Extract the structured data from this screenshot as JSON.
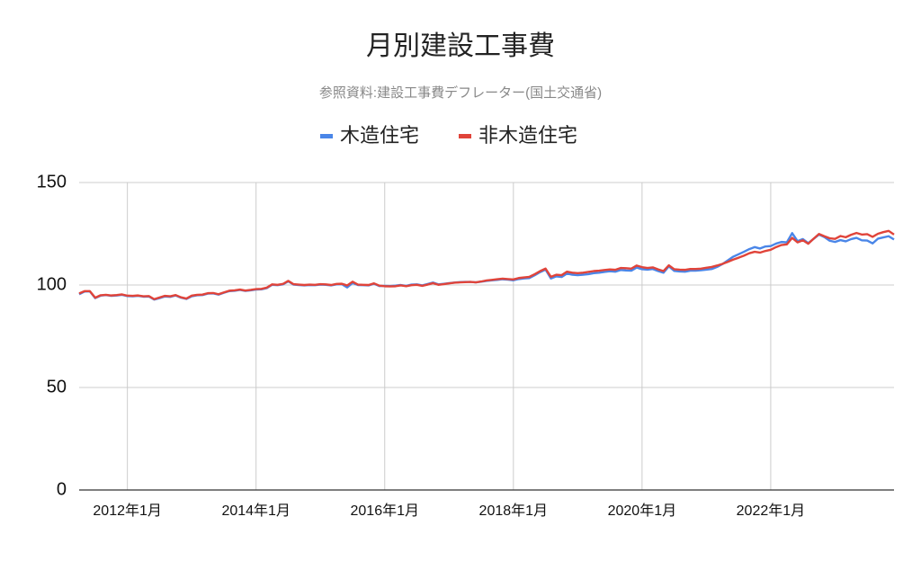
{
  "chart_data": {
    "type": "line",
    "title": "月別建設工事費",
    "subtitle": "参照資料:建設工事費デフレーター(国土交通省)",
    "categories": [
      null,
      null,
      null,
      null,
      null,
      null,
      null,
      null,
      null,
      "2012年1月",
      null,
      null,
      null,
      null,
      null,
      null,
      null,
      null,
      null,
      null,
      null,
      null,
      null,
      null,
      null,
      null,
      null,
      null,
      null,
      null,
      null,
      null,
      null,
      "2014年1月",
      null,
      null,
      null,
      null,
      null,
      null,
      null,
      null,
      null,
      null,
      null,
      null,
      null,
      null,
      null,
      null,
      null,
      null,
      null,
      null,
      null,
      null,
      null,
      "2016年1月",
      null,
      null,
      null,
      null,
      null,
      null,
      null,
      null,
      null,
      null,
      null,
      null,
      null,
      null,
      null,
      null,
      null,
      null,
      null,
      null,
      null,
      null,
      null,
      "2018年1月",
      null,
      null,
      null,
      null,
      null,
      null,
      null,
      null,
      null,
      null,
      null,
      null,
      null,
      null,
      null,
      null,
      null,
      null,
      null,
      null,
      null,
      null,
      null,
      "2020年1月",
      null,
      null,
      null,
      null,
      null,
      null,
      null,
      null,
      null,
      null,
      null,
      null,
      null,
      null,
      null,
      null,
      null,
      null,
      null,
      null,
      null,
      null,
      null,
      "2022年1月",
      null,
      null,
      null,
      null,
      null,
      null,
      null,
      null,
      null,
      null,
      null,
      null,
      null,
      null,
      null,
      null,
      null,
      null,
      null,
      null,
      null,
      null,
      null
    ],
    "series": [
      {
        "name": "木造住宅",
        "color": "#4a86e8",
        "values": [
          95.5,
          96.8,
          96.9,
          93.6,
          94.8,
          95.1,
          94.7,
          94.9,
          95.2,
          94.6,
          94.5,
          94.7,
          94.3,
          94.4,
          92.9,
          93.6,
          94.4,
          94.2,
          94.9,
          93.8,
          93.2,
          94.5,
          95.0,
          95.1,
          95.8,
          95.9,
          95.3,
          96.2,
          97.0,
          97.2,
          97.6,
          97.1,
          97.4,
          97.8,
          97.9,
          98.5,
          100.1,
          99.9,
          100.3,
          101.8,
          100.2,
          100.0,
          99.8,
          100.0,
          99.9,
          100.2,
          100.1,
          99.8,
          100.3,
          100.4,
          98.8,
          101.0,
          100.0,
          99.9,
          99.8,
          100.6,
          99.5,
          99.6,
          99.5,
          99.7,
          100.0,
          99.6,
          100.2,
          100.3,
          99.8,
          100.5,
          101.2,
          100.3,
          100.6,
          100.9,
          101.2,
          101.4,
          101.5,
          101.5,
          101.3,
          101.6,
          102.0,
          102.3,
          102.5,
          102.8,
          102.6,
          102.3,
          102.9,
          103.2,
          103.4,
          104.8,
          106.3,
          107.5,
          103.2,
          104.2,
          103.9,
          105.6,
          105.0,
          104.8,
          105.0,
          105.3,
          105.8,
          106.0,
          106.4,
          106.7,
          106.5,
          107.3,
          107.1,
          107.0,
          108.5,
          107.7,
          107.5,
          107.8,
          106.8,
          106.0,
          109.1,
          106.9,
          106.6,
          106.5,
          107.0,
          107.0,
          107.2,
          107.5,
          107.8,
          108.8,
          110.2,
          112.0,
          113.8,
          115.0,
          116.2,
          117.5,
          118.5,
          117.8,
          118.8,
          119.0,
          120.2,
          121.0,
          120.8,
          125.3,
          121.4,
          122.4,
          120.4,
          122.5,
          124.6,
          123.4,
          121.6,
          121.0,
          121.9,
          121.3,
          122.4,
          123.0,
          121.8,
          121.7,
          120.3,
          122.6,
          123.2,
          123.8,
          122.2
        ]
      },
      {
        "name": "非木造住宅",
        "color": "#e0443a",
        "values": [
          95.9,
          97.0,
          97.0,
          93.8,
          95.0,
          95.2,
          94.9,
          95.1,
          95.4,
          94.8,
          94.7,
          94.9,
          94.5,
          94.6,
          93.1,
          93.9,
          94.7,
          94.5,
          95.1,
          94.0,
          93.4,
          94.8,
          95.2,
          95.3,
          96.0,
          96.1,
          95.5,
          96.4,
          97.2,
          97.4,
          97.8,
          97.3,
          97.6,
          98.0,
          98.1,
          98.7,
          100.3,
          100.1,
          100.5,
          102.0,
          100.4,
          100.2,
          100.0,
          100.2,
          100.1,
          100.4,
          100.3,
          100.0,
          100.5,
          100.6,
          99.8,
          101.6,
          100.2,
          100.1,
          100.0,
          100.8,
          99.7,
          99.4,
          99.3,
          99.4,
          99.8,
          99.4,
          99.9,
          100.1,
          99.6,
          100.2,
          100.9,
          100.1,
          100.4,
          100.8,
          101.1,
          101.3,
          101.4,
          101.5,
          101.3,
          101.7,
          102.2,
          102.5,
          102.8,
          103.1,
          102.9,
          102.7,
          103.4,
          103.7,
          104.0,
          105.3,
          106.8,
          108.0,
          104.0,
          105.0,
          104.8,
          106.5,
          106.0,
          105.8,
          106.0,
          106.4,
          106.8,
          107.0,
          107.3,
          107.6,
          107.4,
          108.3,
          108.2,
          108.0,
          109.5,
          108.7,
          108.3,
          108.6,
          107.6,
          106.8,
          109.6,
          107.7,
          107.5,
          107.4,
          107.8,
          107.8,
          108.0,
          108.4,
          108.8,
          109.5,
          110.3,
          111.3,
          112.4,
          113.3,
          114.3,
          115.5,
          116.2,
          115.8,
          116.6,
          117.2,
          118.5,
          119.5,
          119.8,
          123.0,
          120.8,
          121.8,
          120.1,
          122.6,
          124.9,
          123.8,
          122.8,
          122.5,
          123.9,
          123.3,
          124.5,
          125.4,
          124.6,
          124.8,
          123.5,
          125.0,
          125.8,
          126.4,
          124.6
        ]
      }
    ],
    "ylim": [
      0,
      150
    ],
    "yticks": [
      0,
      50,
      100,
      150
    ],
    "grid": true
  }
}
